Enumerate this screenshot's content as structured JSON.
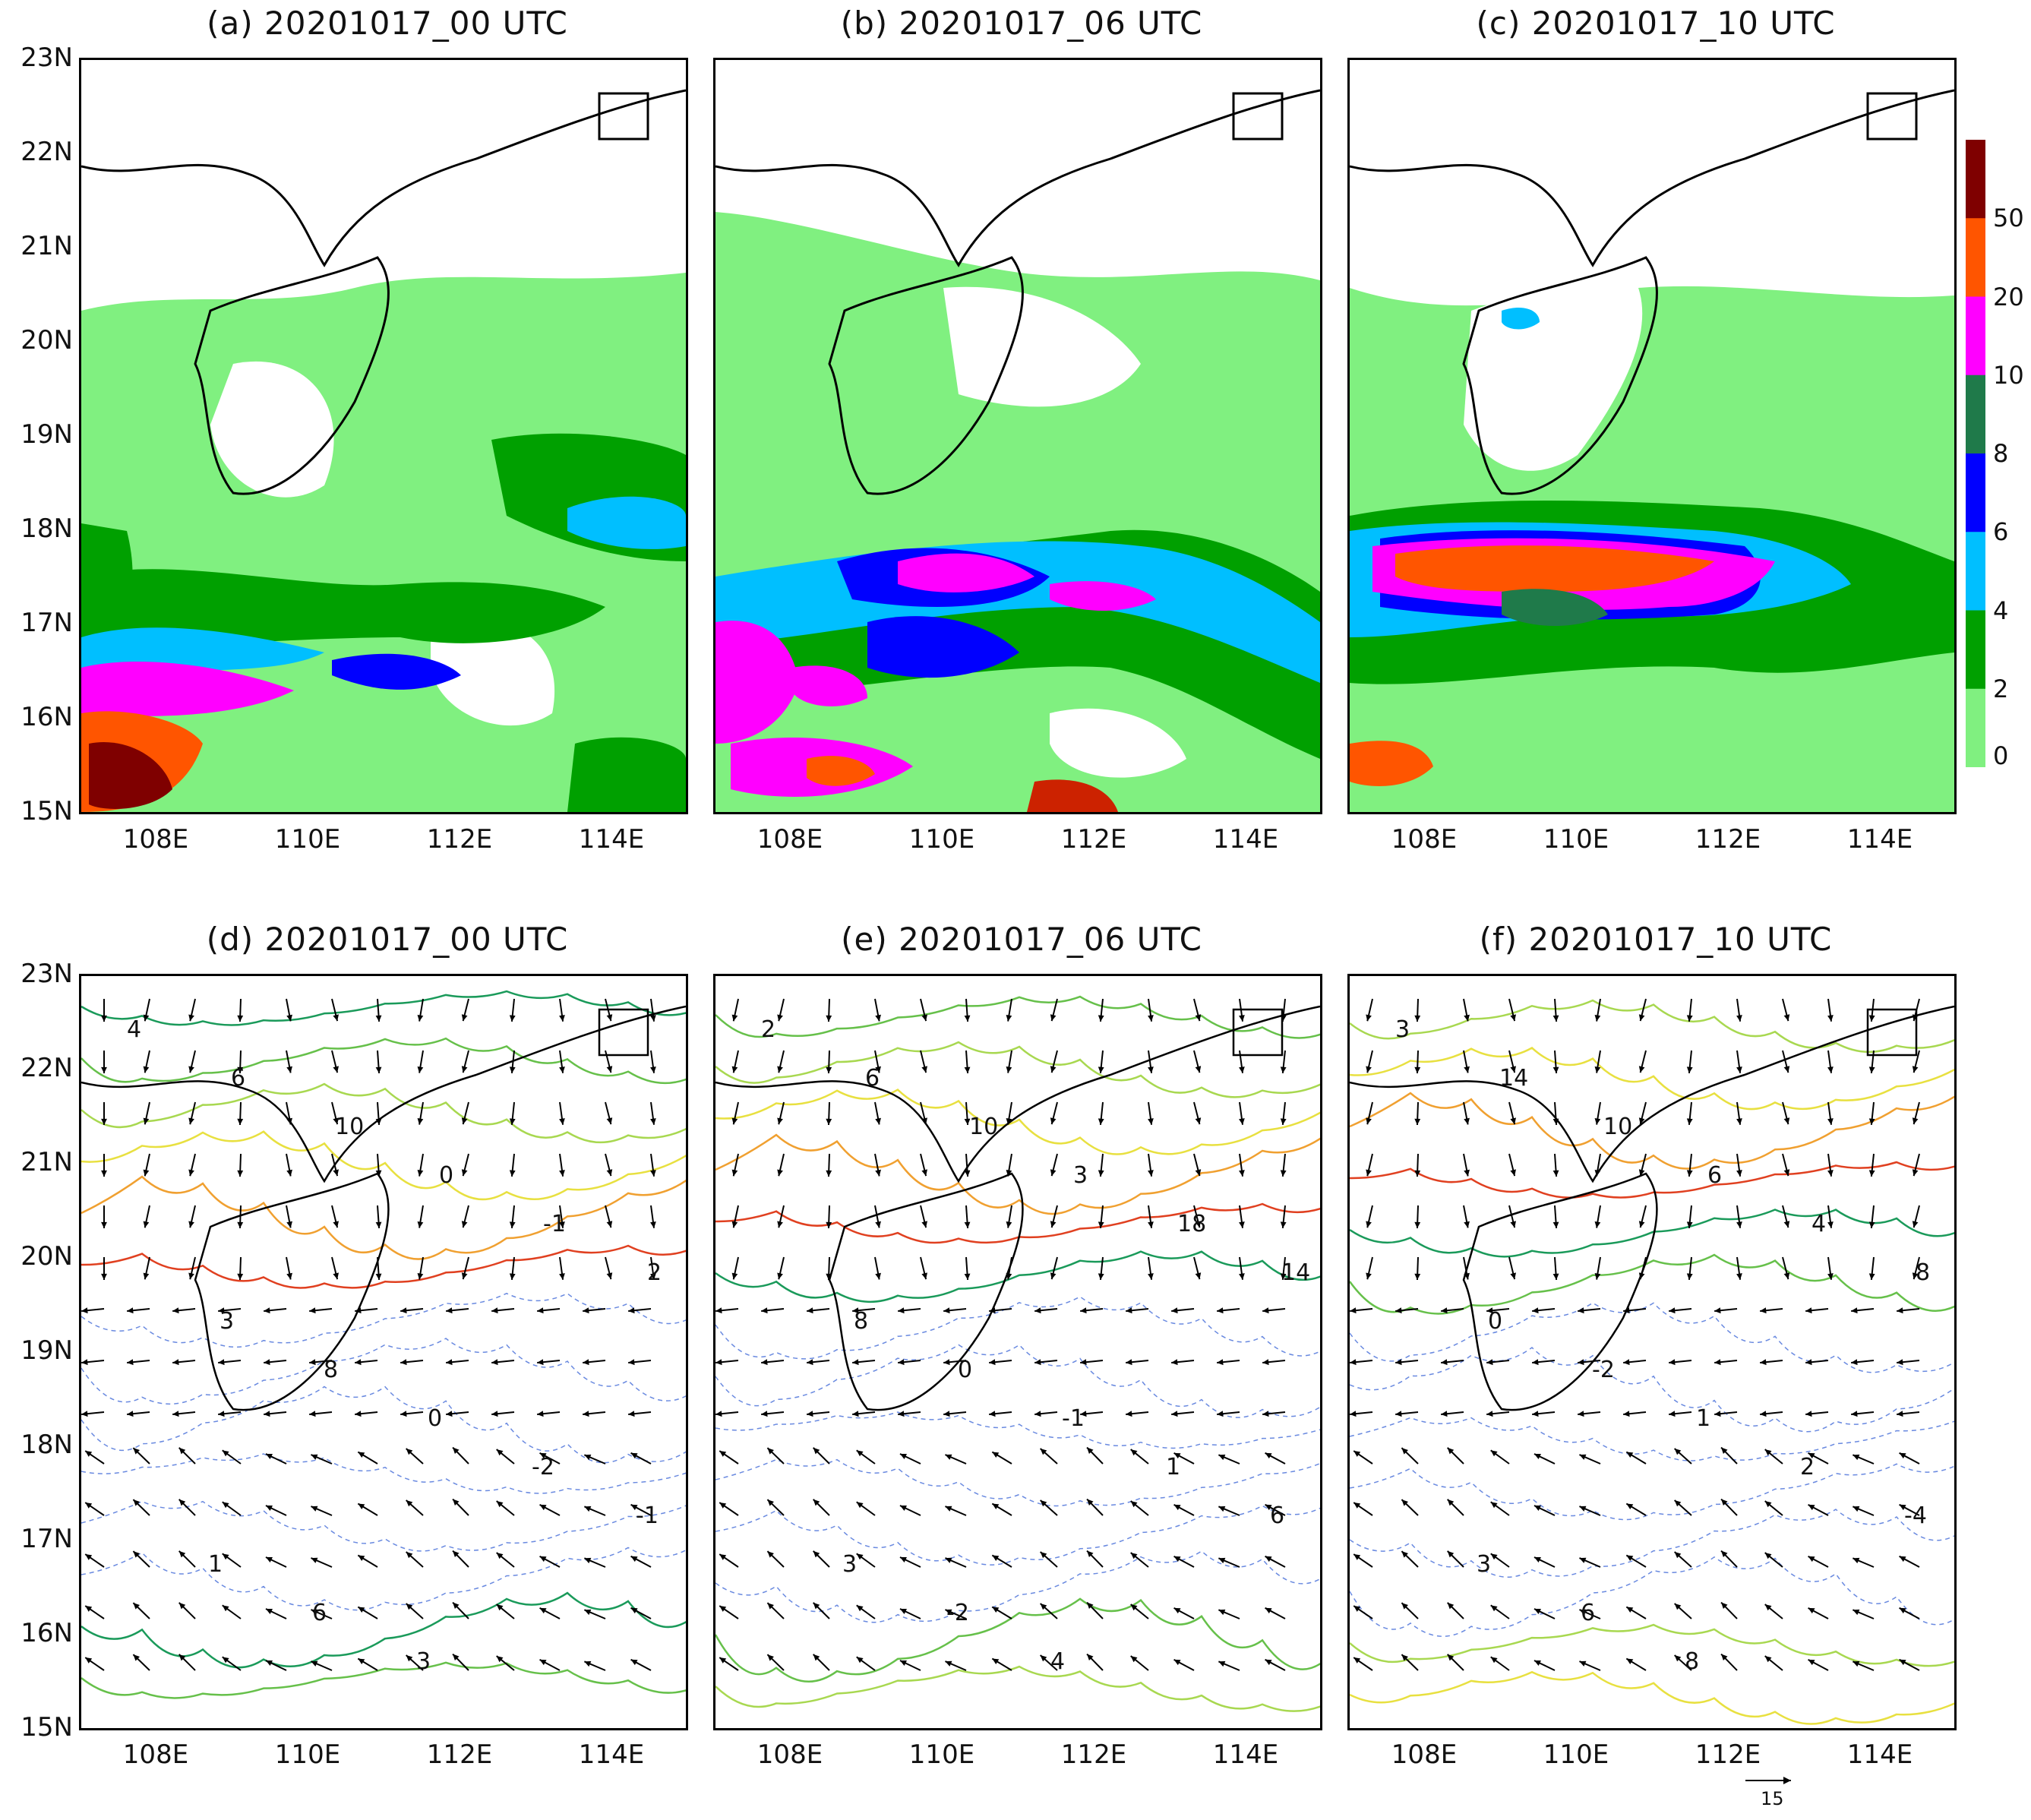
{
  "panels_top": [
    {
      "title": "(a) 20201017_00 UTC"
    },
    {
      "title": "(b) 20201017_06 UTC"
    },
    {
      "title": "(c) 20201017_10 UTC"
    }
  ],
  "panels_bottom": [
    {
      "title": "(d) 20201017_00 UTC"
    },
    {
      "title": "(e) 20201017_06 UTC"
    },
    {
      "title": "(f) 20201017_10 UTC"
    }
  ],
  "axes": {
    "lat_labels": [
      "23N",
      "22N",
      "21N",
      "20N",
      "19N",
      "18N",
      "17N",
      "16N",
      "15N"
    ],
    "lon_labels": [
      "108E",
      "110E",
      "112E",
      "114E"
    ],
    "lat_range": [
      15,
      23
    ],
    "lon_range": [
      107,
      115
    ]
  },
  "colorbar": {
    "labels": [
      "50",
      "20",
      "10",
      "8",
      "6",
      "4",
      "2",
      "0"
    ],
    "colors": [
      "#7f0000",
      "#ff5500",
      "#ff00ff",
      "#1f7a4a",
      "#0000ff",
      "#00bfff",
      "#00a000",
      "#80f080"
    ]
  },
  "contour_labels": {
    "d": [
      "4",
      "6",
      "10",
      "0",
      "-1",
      "2",
      "3",
      "8",
      "0",
      "-2",
      "-1",
      "1",
      "6",
      "3"
    ],
    "e": [
      "2",
      "6",
      "10",
      "3",
      "18",
      "14",
      "8",
      "0",
      "-1",
      "1",
      "6",
      "3",
      "-2",
      "4"
    ],
    "f": [
      "3",
      "14",
      "10",
      "6",
      "4",
      "8",
      "0",
      "-2",
      "1",
      "2",
      "-4",
      "3",
      "6",
      "8"
    ]
  },
  "vector_reference": {
    "label": "15"
  }
}
